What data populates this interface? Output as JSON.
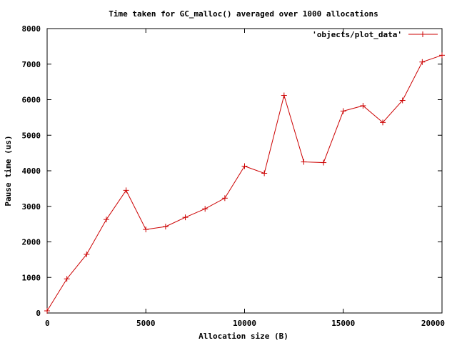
{
  "chart_data": {
    "type": "line",
    "title": "Time taken for GC_malloc() averaged over 1000 allocations",
    "xlabel": "Allocation size (B)",
    "ylabel": "Pause time (us)",
    "xlim": [
      0,
      20000
    ],
    "ylim": [
      0,
      8000
    ],
    "xticks": [
      0,
      5000,
      10000,
      15000,
      20000
    ],
    "yticks": [
      0,
      1000,
      2000,
      3000,
      4000,
      5000,
      6000,
      7000,
      8000
    ],
    "grid": false,
    "legend_position": "top-right",
    "series": [
      {
        "name": "'objects/plot_data'",
        "color": "#cc0000",
        "marker": "plus",
        "x": [
          0,
          1000,
          2000,
          3000,
          4000,
          5000,
          6000,
          7000,
          8000,
          9000,
          10000,
          11000,
          12000,
          13000,
          14000,
          15000,
          16000,
          17000,
          18000,
          19000,
          20000
        ],
        "y": [
          60,
          960,
          1650,
          2630,
          3450,
          2350,
          2430,
          2690,
          2930,
          3230,
          4130,
          3930,
          6120,
          4250,
          4230,
          5680,
          5830,
          5360,
          5980,
          7060,
          7250
        ]
      }
    ]
  }
}
